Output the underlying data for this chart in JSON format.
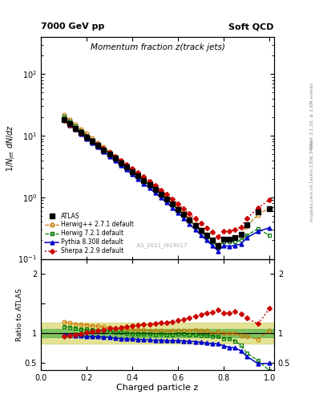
{
  "title_main": "Momentum fraction z(track jets)",
  "header_left": "7000 GeV pp",
  "header_right": "Soft QCD",
  "right_label_top": "Rivet 3.1.10, ≥ 2.6M events",
  "right_label_bot": "mcplots.cern.ch [arXiv:1306.3436]",
  "watermark": "ATLAS_2011_I919017",
  "xlabel": "Charged particle z",
  "ylabel": "1/N$_\\mathrm{jet}$ dN/dz",
  "ratio_ylabel": "Ratio to ATLAS",
  "z_values": [
    0.1,
    0.125,
    0.15,
    0.175,
    0.2,
    0.225,
    0.25,
    0.275,
    0.3,
    0.325,
    0.35,
    0.375,
    0.4,
    0.425,
    0.45,
    0.475,
    0.5,
    0.525,
    0.55,
    0.575,
    0.6,
    0.625,
    0.65,
    0.675,
    0.7,
    0.725,
    0.75,
    0.775,
    0.8,
    0.825,
    0.85,
    0.875,
    0.9,
    0.95,
    1.0
  ],
  "atlas": [
    18.5,
    15.5,
    13.2,
    11.2,
    9.5,
    8.1,
    6.9,
    5.9,
    5.0,
    4.3,
    3.65,
    3.1,
    2.62,
    2.22,
    1.88,
    1.59,
    1.34,
    1.12,
    0.94,
    0.78,
    0.64,
    0.53,
    0.43,
    0.35,
    0.29,
    0.24,
    0.2,
    0.165,
    0.21,
    0.21,
    0.22,
    0.25,
    0.36,
    0.58,
    0.65
  ],
  "herwig_pp": [
    22.0,
    18.2,
    15.2,
    12.8,
    10.8,
    9.1,
    7.7,
    6.5,
    5.5,
    4.65,
    3.92,
    3.3,
    2.77,
    2.34,
    1.97,
    1.66,
    1.39,
    1.16,
    0.97,
    0.81,
    0.67,
    0.55,
    0.45,
    0.37,
    0.3,
    0.25,
    0.2,
    0.17,
    0.21,
    0.21,
    0.22,
    0.24,
    0.34,
    0.52,
    0.68
  ],
  "herwig721": [
    20.5,
    17.0,
    14.3,
    12.0,
    10.1,
    8.55,
    7.2,
    6.1,
    5.15,
    4.35,
    3.68,
    3.1,
    2.6,
    2.19,
    1.85,
    1.56,
    1.31,
    1.1,
    0.92,
    0.76,
    0.63,
    0.52,
    0.42,
    0.34,
    0.28,
    0.23,
    0.19,
    0.155,
    0.19,
    0.19,
    0.19,
    0.2,
    0.24,
    0.31,
    0.24
  ],
  "pythia": [
    18.0,
    15.0,
    12.7,
    10.7,
    9.0,
    7.65,
    6.5,
    5.5,
    4.65,
    3.93,
    3.32,
    2.8,
    2.36,
    1.99,
    1.67,
    1.41,
    1.18,
    0.99,
    0.82,
    0.68,
    0.56,
    0.46,
    0.37,
    0.3,
    0.245,
    0.2,
    0.165,
    0.135,
    0.165,
    0.16,
    0.165,
    0.175,
    0.22,
    0.28,
    0.32
  ],
  "sherpa": [
    17.5,
    14.8,
    12.8,
    11.1,
    9.6,
    8.35,
    7.2,
    6.25,
    5.4,
    4.65,
    4.0,
    3.45,
    2.95,
    2.52,
    2.15,
    1.83,
    1.56,
    1.32,
    1.11,
    0.93,
    0.78,
    0.65,
    0.54,
    0.45,
    0.38,
    0.32,
    0.27,
    0.23,
    0.28,
    0.28,
    0.3,
    0.33,
    0.45,
    0.67,
    0.92
  ],
  "atlas_color": "#000000",
  "herwig_pp_color": "#cc7700",
  "herwig721_color": "#007700",
  "pythia_color": "#0000cc",
  "sherpa_color": "#cc0000",
  "band_inner_color": "#33aa33",
  "band_outer_color": "#cccc44",
  "band_inner_alpha": 0.55,
  "band_outer_alpha": 0.55,
  "band_inner_lo": 0.93,
  "band_inner_hi": 1.07,
  "band_outer_lo": 0.83,
  "band_outer_hi": 1.17,
  "xlim": [
    0.0,
    1.02
  ],
  "ylim_main": [
    0.1,
    400
  ],
  "ylim_ratio": [
    0.38,
    2.25
  ],
  "ratio_yticks": [
    0.5,
    1.0,
    1.5,
    2.0
  ],
  "ratio_yticklabels": [
    "0.5",
    "1",
    "",
    "2"
  ]
}
